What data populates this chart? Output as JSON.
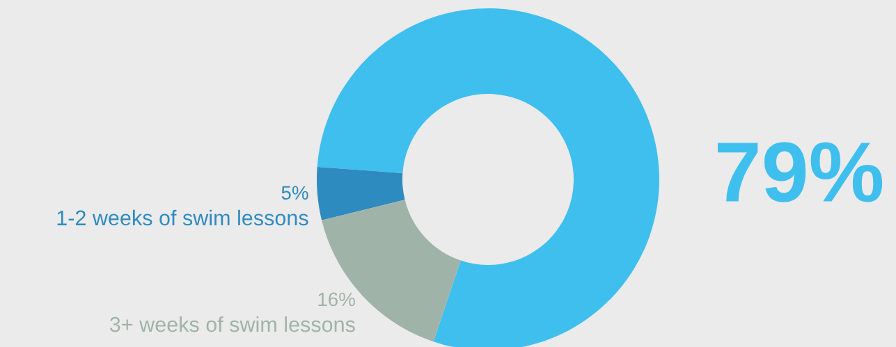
{
  "chart_data": {
    "type": "donut",
    "categories": [
      null,
      "1-2 weeks of swim lessons",
      "3+ weeks of swim lessons"
    ],
    "values": [
      79,
      5,
      16
    ],
    "colors": [
      "#3fbfee",
      "#2e8bbf",
      "#a0b3a8"
    ],
    "value_labels": [
      "79%",
      "5%",
      "16%"
    ]
  }
}
